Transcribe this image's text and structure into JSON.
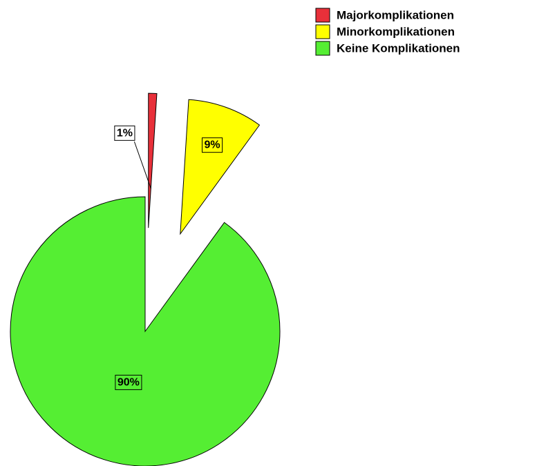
{
  "chart_data": {
    "type": "pie",
    "categories": [
      "Majorkomplikationen",
      "Minorkomplikationen",
      "Keine Komplikationen"
    ],
    "values": [
      1,
      9,
      90
    ],
    "value_labels": [
      "1%",
      "9%",
      "90%"
    ],
    "colors": [
      "#e8303a",
      "#ffff00",
      "#55ee33"
    ],
    "legend": "top-right"
  }
}
